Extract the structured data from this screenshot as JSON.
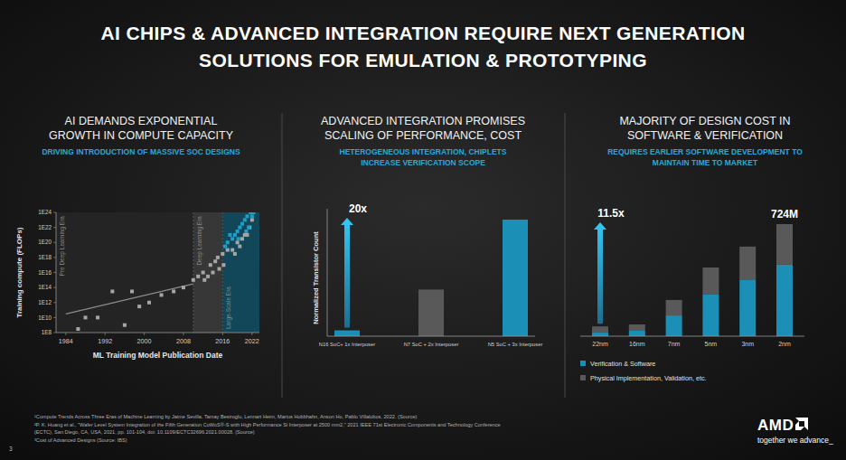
{
  "title": [
    "AI CHIPS & ADVANCED INTEGRATION REQUIRE NEXT GENERATION",
    "SOLUTIONS FOR EMULATION & PROTOTYPING"
  ],
  "chart_data": [
    {
      "type": "scatter",
      "title": [
        "AI DEMANDS EXPONENTIAL",
        "GROWTH IN COMPUTE CAPACITY"
      ],
      "subtitle": [
        "DRIVING INTRODUCTION OF MASSIVE SOC DESIGNS"
      ],
      "x_label": "ML Training Model Publication Date",
      "y_label": "Training compute (FLOPs)",
      "log": "y",
      "xlim": [
        1982,
        2023.5
      ],
      "xticks": [
        1984,
        1992,
        2000,
        2008,
        2016,
        2022
      ],
      "ylim": [
        100000000.0,
        1e+24
      ],
      "yticks": [
        {
          "value": 100000000.0,
          "label": "1E8"
        },
        {
          "value": 10000000000.0,
          "label": "1E10"
        },
        {
          "value": 1000000000000.0,
          "label": "1E12"
        },
        {
          "value": 100000000000000.0,
          "label": "1E14"
        },
        {
          "value": 1e+16,
          "label": "1E16"
        },
        {
          "value": 1e+18,
          "label": "1E18"
        },
        {
          "value": 1e+20,
          "label": "1E20"
        },
        {
          "value": 1e+22,
          "label": "1E22"
        },
        {
          "value": 1e+24,
          "label": "1E24"
        }
      ],
      "eras": [
        {
          "label": "Pre Deep Learning Era",
          "start": 1982,
          "end": 2010
        },
        {
          "label": "Deep Learning Era",
          "start": 2010,
          "end": 2016,
          "color": "#3a3a3a"
        },
        {
          "label": "Large-Scale Era",
          "start": 2016,
          "end": 2023.5,
          "color": "#0f4b5e"
        }
      ],
      "series": [
        {
          "color": "#a6a6a6",
          "marker": "square",
          "x": [
            1986.5,
            1988,
            1990.5,
            1993.5,
            1996,
            1997.5,
            1999,
            2001,
            2003.5,
            2006,
            2008,
            2010,
            2011,
            2012,
            2012.3,
            2013,
            2013.5,
            2014,
            2014.5,
            2015,
            2015.3,
            2016,
            2016.2,
            2017,
            2018,
            2019,
            2019.5,
            2020,
            2021,
            2021.5,
            2022,
            2020.5,
            2018.5
          ],
          "values": [
            300000000.0,
            10000000000.0,
            10000000000.0,
            30000000000000.0,
            1000000000.0,
            30000000000000.0,
            300000000000.0,
            1000000000000.0,
            10000000000000.0,
            30000000000000.0,
            100000000000000.0,
            1000000000000000.0,
            3000000000000000.0,
            1e+16,
            1000000000000000.0,
            3000000000000000.0,
            1e+17,
            1e+16,
            3e+17,
            1e+18,
            3e+16,
            3e+18,
            1e+17,
            1e+19,
            1e+19,
            1e+20,
            3e+19,
            3e+20,
            1e+21,
            1e+22,
            1e+23,
            1e+21,
            3e+18
          ]
        },
        {
          "color": "#1f9fc8",
          "marker": "square",
          "x": [
            2016.5,
            2017,
            2017.5,
            2018,
            2018.5,
            2019,
            2019.5,
            2020,
            2020.5,
            2021,
            2021.3,
            2021.7,
            2022,
            2022.3,
            2019.2,
            2020.8
          ],
          "values": [
            3e+19,
            1e+20,
            1e+21,
            3e+20,
            1e+21,
            3e+21,
            1e+22,
            3e+22,
            1e+23,
            3e+23,
            1e+22,
            1e+24,
            3e+23,
            1e+24,
            3e+20,
            3e+21
          ]
        },
        {
          "type": "line",
          "color": "#8c8c8c",
          "x": [
            1984,
            2010
          ],
          "values": [
            30000000000.0,
            300000000000000.0
          ]
        }
      ]
    },
    {
      "type": "bar",
      "title": [
        "ADVANCED INTEGRATION PROMISES",
        "SCALING OF PERFORMANCE, COST"
      ],
      "subtitle": [
        "HETEROGENEOUS INTEGRATION, CHIPLETS",
        "INCREASE VERIFICATION SCOPE"
      ],
      "y_label": "Normalized Transistor Count",
      "categories": [
        "N16 SoC+ 1x Interposer",
        "N7 SoC + 2x Interposer",
        "N5 SoC + 3x Interposer"
      ],
      "values": [
        1,
        8,
        20
      ],
      "colors": [
        "#1b8fb5",
        "#595959",
        "#1b8fb5"
      ],
      "ylim": [
        0,
        20
      ],
      "tick_labels": "x",
      "annotations": [
        {
          "text": "20x"
        }
      ]
    },
    {
      "type": "bar",
      "stacked": true,
      "title": [
        "MAJORITY OF DESIGN COST IN",
        "SOFTWARE & VERIFICATION"
      ],
      "subtitle": [
        "REQUIRES EARLIER SOFTWARE DEVELOPMENT TO",
        "MAINTAIN TIME TO MARKET"
      ],
      "categories": [
        "22nm",
        "16nm",
        "7nm",
        "5nm",
        "3nm",
        "2nm"
      ],
      "series": [
        {
          "name": "Verification & Software",
          "color": "#1b8fb5",
          "values": [
            23,
            35,
            134,
            269,
            362,
            462
          ]
        },
        {
          "name": "Physical Implementation, Validation, etc.",
          "color": "#595959",
          "values": [
            40,
            41,
            100,
            175,
            217,
            262
          ]
        }
      ],
      "ylim": [
        0,
        724
      ],
      "tick_labels": "x",
      "legend": "bottom",
      "annotations": [
        {
          "text": "11.5x"
        },
        {
          "text": "724M"
        }
      ]
    }
  ],
  "footnotes": [
    "¹Compute Trends Across Three Eras of Machine Learning by Jaime Sevilla, Tamay Besiroglu, Lennart Heim, Marius Hobbhahn, Anson Ho, Pablo Villalobos, 2022. (Source)",
    "²P. K. Huang et al., \"Wafer Level System Integration of the Fifth Generation CoWoS®-S with High Performance Si Interposer at 2500 mm2,\" 2021 IEEE 71st Electronic Components and Technology Conference",
    "(ECTC), San Diego, CA, USA, 2021, pp. 101-104, doi: 10.1109/ECTC32696.2021.00028. (Source)",
    "³Cost of Advanced Designs (Source: IBS)"
  ],
  "page_number": "3",
  "logo": {
    "text": "AMD",
    "tagline": "together we advance_"
  }
}
